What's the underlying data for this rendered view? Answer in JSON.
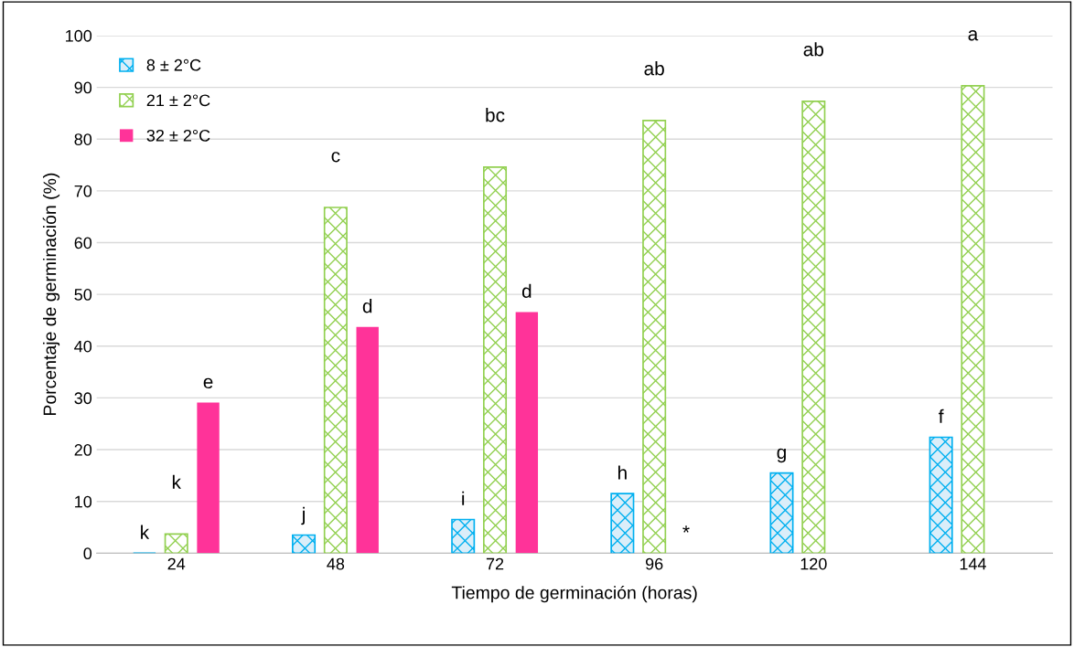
{
  "chart_data": {
    "type": "bar",
    "xlabel": "Tiempo de germinación (horas)",
    "ylabel": "Porcentaje de germinación (%)",
    "categories": [
      "24",
      "48",
      "72",
      "96",
      "120",
      "144"
    ],
    "series": [
      {
        "name": "8 ± 2°C",
        "color": "#00b0f0",
        "values": [
          0,
          3.5,
          6.5,
          11.5,
          15.5,
          22.4
        ]
      },
      {
        "name": "21 ± 2°C",
        "color": "#92d050",
        "values": [
          3.7,
          66.8,
          74.6,
          83.6,
          87.3,
          90.3
        ]
      },
      {
        "name": "32 ± 2°C",
        "color": "#ff3399",
        "values": [
          29.1,
          43.7,
          46.6,
          0,
          null,
          null
        ]
      }
    ],
    "ylim": [
      0,
      100
    ],
    "yticks": [
      0,
      10,
      20,
      30,
      40,
      50,
      60,
      70,
      80,
      90,
      100
    ],
    "grid": "y",
    "legend": "top left",
    "annotations": [
      "k",
      "k",
      "e",
      "j",
      "c",
      "d",
      "i",
      "bc",
      "d",
      "h",
      "ab",
      "*",
      "g",
      "ab",
      "f",
      "a"
    ]
  }
}
